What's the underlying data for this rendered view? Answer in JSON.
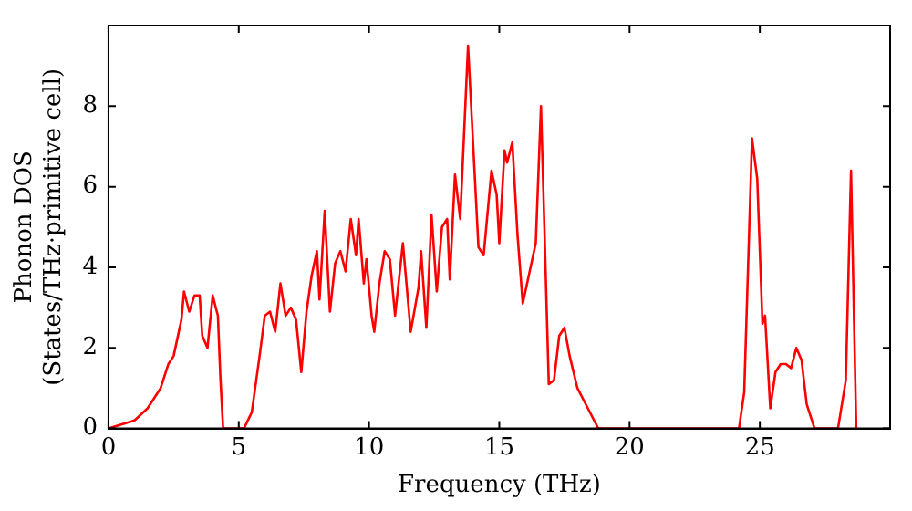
{
  "chart_data": {
    "type": "line",
    "xlabel": "Frequency (THz)",
    "ylabel": "Phonon DOS\n(States/THz·primitive cell)",
    "x": [
      0,
      1,
      1.5,
      2,
      2.3,
      2.5,
      2.8,
      2.9,
      3.1,
      3.3,
      3.5,
      3.6,
      3.8,
      4.0,
      4.2,
      4.3,
      4.4,
      5.2,
      5.5,
      5.8,
      6.0,
      6.2,
      6.4,
      6.6,
      6.8,
      7.0,
      7.2,
      7.4,
      7.6,
      7.8,
      8.0,
      8.1,
      8.3,
      8.5,
      8.7,
      8.9,
      9.1,
      9.3,
      9.5,
      9.6,
      9.8,
      9.9,
      10.1,
      10.2,
      10.4,
      10.6,
      10.8,
      11.0,
      11.3,
      11.6,
      11.9,
      12.0,
      12.2,
      12.4,
      12.6,
      12.8,
      13.0,
      13.1,
      13.3,
      13.5,
      13.8,
      14.0,
      14.2,
      14.4,
      14.7,
      14.9,
      15.0,
      15.2,
      15.3,
      15.5,
      15.7,
      15.9,
      16.1,
      16.4,
      16.6,
      16.9,
      17.1,
      17.3,
      17.5,
      17.7,
      18.0,
      18.4,
      18.8,
      24.2,
      24.4,
      24.7,
      24.9,
      25.1,
      25.2,
      25.4,
      25.6,
      25.8,
      26.0,
      26.2,
      26.4,
      26.6,
      26.8,
      27.1,
      28.0,
      28.3,
      28.5,
      28.7
    ],
    "series": [
      {
        "color": "#ff0000",
        "values": [
          0,
          0.2,
          0.5,
          1.0,
          1.6,
          1.8,
          2.7,
          3.4,
          2.9,
          3.3,
          3.3,
          2.3,
          2.0,
          3.3,
          2.8,
          1.2,
          0,
          0,
          0.4,
          1.8,
          2.8,
          2.9,
          2.4,
          3.6,
          2.8,
          3.0,
          2.7,
          1.4,
          2.9,
          3.8,
          4.4,
          3.2,
          5.4,
          2.9,
          4.1,
          4.4,
          3.9,
          5.2,
          4.3,
          5.2,
          3.6,
          4.2,
          2.8,
          2.4,
          3.6,
          4.4,
          4.2,
          2.8,
          4.6,
          2.4,
          3.5,
          4.4,
          2.5,
          5.3,
          3.4,
          5.0,
          5.2,
          3.7,
          6.3,
          5.2,
          9.5,
          7.0,
          4.5,
          4.3,
          6.4,
          5.8,
          4.6,
          6.9,
          6.6,
          7.1,
          4.8,
          3.1,
          3.7,
          4.6,
          8.0,
          1.1,
          1.2,
          2.3,
          2.5,
          1.8,
          1.0,
          0.5,
          0,
          0,
          0.9,
          7.2,
          6.2,
          2.6,
          2.8,
          0.5,
          1.4,
          1.6,
          1.6,
          1.5,
          2.0,
          1.7,
          0.6,
          0,
          0,
          1.2,
          6.4,
          0
        ]
      }
    ],
    "xlim": [
      0,
      30
    ],
    "ylim": [
      0,
      10
    ],
    "xticks": [
      0,
      5,
      10,
      15,
      20,
      25
    ],
    "yticks": [
      0,
      2,
      4,
      6,
      8
    ],
    "grid": false,
    "legend": false,
    "marker": "none",
    "line_style": "solid"
  }
}
